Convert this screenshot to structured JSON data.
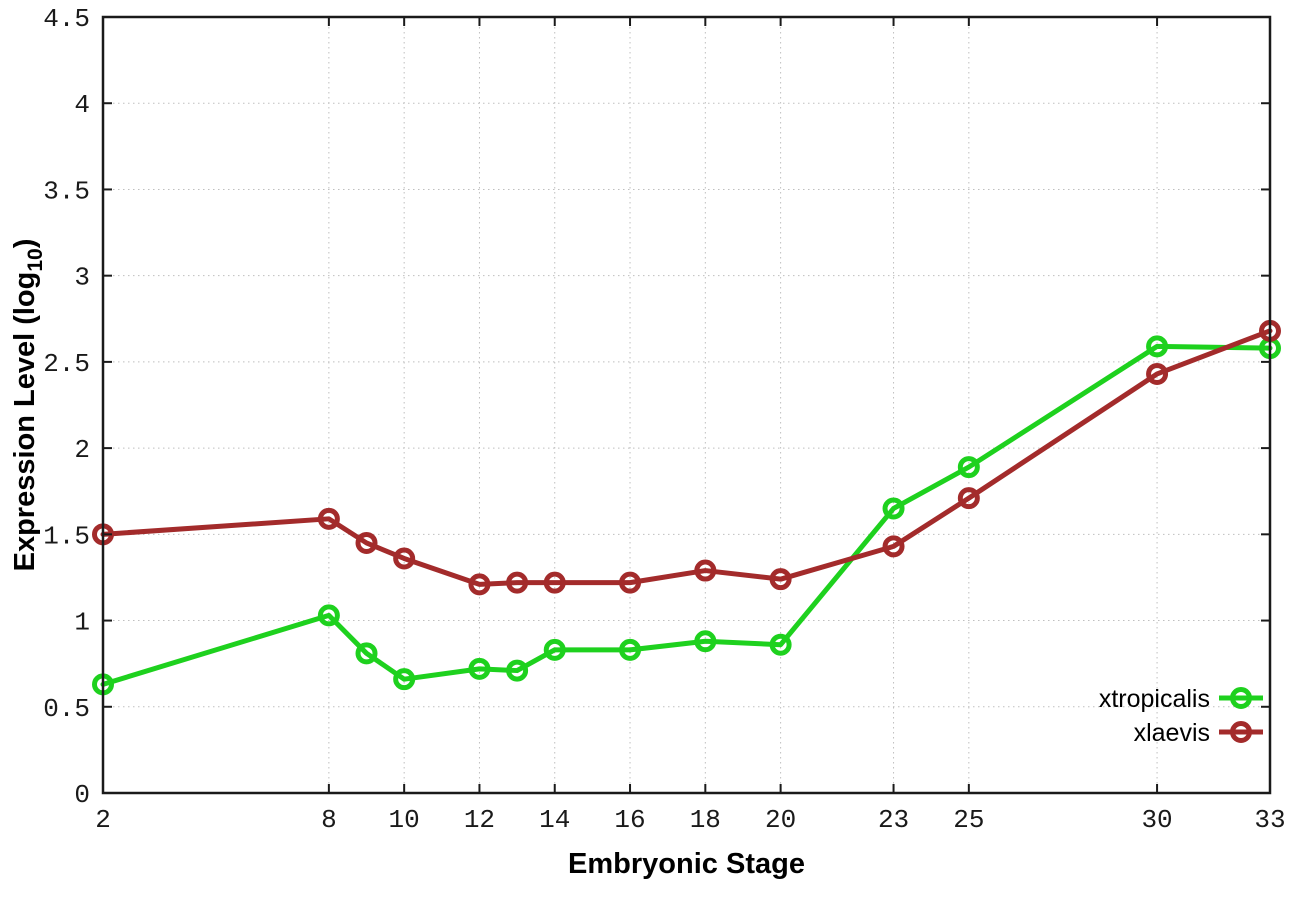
{
  "figure": {
    "background": "#ffffff",
    "border_color": "#1a1a1a",
    "grid_color": "#bfbfbf",
    "tick_label_color": "#1a1a1a"
  },
  "chart_data": {
    "type": "line",
    "title": "",
    "xlabel": "Embryonic Stage",
    "ylabel": {
      "prefix": "Expression Level (log",
      "sub": "10",
      "suffix": ")"
    },
    "xlim": [
      2,
      33
    ],
    "ylim": [
      0,
      4.5
    ],
    "grid": true,
    "legend_position": "bottom-right",
    "xticks": [
      {
        "value": 2,
        "label": "2"
      },
      {
        "value": 8,
        "label": "8"
      },
      {
        "value": 10,
        "label": "10"
      },
      {
        "value": 12,
        "label": "12"
      },
      {
        "value": 14,
        "label": "14"
      },
      {
        "value": 16,
        "label": "16"
      },
      {
        "value": 18,
        "label": "18"
      },
      {
        "value": 20,
        "label": "20"
      },
      {
        "value": 23,
        "label": "23"
      },
      {
        "value": 25,
        "label": "25"
      },
      {
        "value": 30,
        "label": "30"
      },
      {
        "value": 33,
        "label": "33"
      }
    ],
    "yticks": [
      {
        "value": 0,
        "label": "0"
      },
      {
        "value": 0.5,
        "label": "0.5"
      },
      {
        "value": 1,
        "label": "1"
      },
      {
        "value": 1.5,
        "label": "1.5"
      },
      {
        "value": 2,
        "label": "2"
      },
      {
        "value": 2.5,
        "label": "2.5"
      },
      {
        "value": 3,
        "label": "3"
      },
      {
        "value": 3.5,
        "label": "3.5"
      },
      {
        "value": 4,
        "label": "4"
      },
      {
        "value": 4.5,
        "label": "4.5"
      }
    ],
    "x": [
      2,
      8,
      9,
      10,
      12,
      13,
      14,
      16,
      18,
      20,
      23,
      25,
      30,
      33
    ],
    "series": [
      {
        "name": "xtropicalis",
        "color": "#1ed11e",
        "values": [
          0.63,
          1.03,
          0.81,
          0.66,
          0.72,
          0.71,
          0.83,
          0.83,
          0.88,
          0.86,
          1.65,
          1.89,
          2.59,
          2.58
        ]
      },
      {
        "name": "xlaevis",
        "color": "#a32b2b",
        "values": [
          1.5,
          1.59,
          1.45,
          1.36,
          1.21,
          1.22,
          1.22,
          1.22,
          1.29,
          1.24,
          1.43,
          1.71,
          2.43,
          2.68
        ]
      }
    ]
  }
}
